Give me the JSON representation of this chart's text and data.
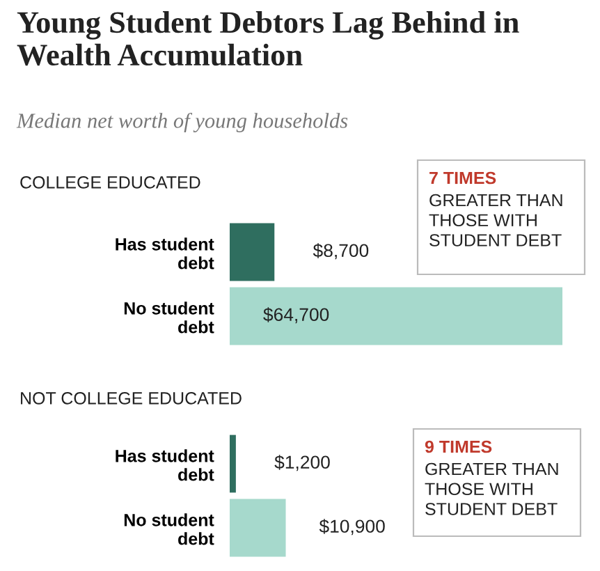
{
  "chart_data": [
    {
      "type": "bar",
      "orientation": "horizontal",
      "title": "Young Student Debtors Lag Behind in Wealth Accumulation",
      "subtitle": "Median net worth of young households",
      "categories": [
        "Has student debt",
        "No student debt"
      ],
      "values": [
        8700,
        64700
      ],
      "colors": [
        "#2f6e5f",
        "#a6d9cc"
      ],
      "value_labels": [
        "$8,700",
        "$64,700"
      ],
      "annotations": [
        "COLLEGE EDUCATED",
        "7 TIMES",
        "GREATER THAN THOSE WITH STUDENT DEBT"
      ]
    },
    {
      "type": "bar",
      "orientation": "horizontal",
      "categories": [
        "Has student debt",
        "No student debt"
      ],
      "values": [
        1200,
        10900
      ],
      "colors": [
        "#2f6e5f",
        "#a6d9cc"
      ],
      "value_labels": [
        "$1,200",
        "$10,900"
      ],
      "annotations": [
        "NOT COLLEGE EDUCATED",
        "9 TIMES",
        "GREATER THAN THOSE WITH STUDENT DEBT"
      ]
    }
  ]
}
